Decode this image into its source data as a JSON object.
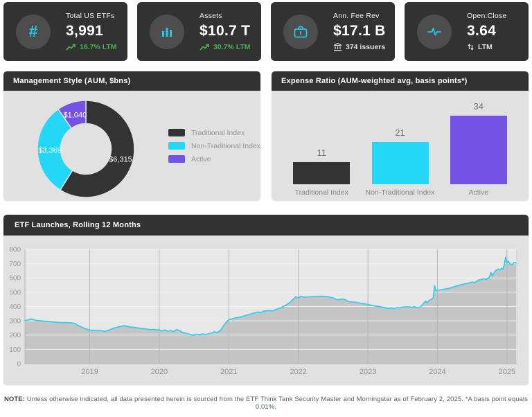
{
  "colors": {
    "card_bg": "#323232",
    "icon_circle_bg": "#4d4d4d",
    "accent_cyan": "#29c6e8",
    "green": "#4caf50",
    "panel_body_bg": "#e1e1e1",
    "series_dark": "#333333",
    "series_cyan": "#24d7f6",
    "series_purple": "#7452e4",
    "line_color": "#3bcbea",
    "area_fill": "#c3c3c3",
    "plot_bg": "#e8e8e8"
  },
  "kpi_cards": [
    {
      "icon": "hash-icon",
      "label": "Total US ETFs",
      "value": "3,991",
      "sub": "16.7% LTM",
      "sub_icon": "trending-up-icon"
    },
    {
      "icon": "bar-chart-icon",
      "label": "Assets",
      "value": "$10.7 T",
      "sub": "30.7% LTM",
      "sub_icon": "trending-up-icon"
    },
    {
      "icon": "briefcase-icon",
      "label": "Ann. Fee Rev",
      "value": "$17.1 B",
      "sub": "374 issuers",
      "sub_icon": "bank-icon"
    },
    {
      "icon": "activity-icon",
      "label": "Open:Close",
      "value": "3.64",
      "sub": "LTM",
      "sub_icon": "up-down-arrows-icon"
    }
  ],
  "chart_data": [
    {
      "type": "pie",
      "donut": true,
      "title": "Management Style (AUM, $bns)",
      "labels": [
        "Traditional Index",
        "Non-Traditional Index",
        "Active"
      ],
      "values": [
        6315,
        3369,
        1040
      ],
      "value_labels": [
        "$6,315",
        "$3,369",
        "$1,040"
      ],
      "colors": [
        "#333333",
        "#24d7f6",
        "#7452e4"
      ],
      "legend_position": "right",
      "start_angle_deg": 0,
      "direction": "clockwise"
    },
    {
      "type": "bar",
      "title": "Expense Ratio (AUM-weighted avg, basis points*)",
      "categories": [
        "Traditional Index",
        "Non-Traditional Index",
        "Active"
      ],
      "values": [
        11,
        21,
        34
      ],
      "colors": [
        "#333333",
        "#24d7f6",
        "#7452e4"
      ],
      "ylim": [
        0,
        36
      ],
      "grid": false,
      "value_labels_shown": true
    },
    {
      "type": "area",
      "title": "ETF Launches, Rolling 12 Months",
      "xlabel": "",
      "ylabel": "",
      "xlim": [
        2018.07,
        2025.14
      ],
      "ylim": [
        0,
        800
      ],
      "xticks": [
        2019,
        2020,
        2021,
        2022,
        2023,
        2024,
        2025
      ],
      "yticks": [
        0,
        100,
        200,
        300,
        400,
        500,
        600,
        700,
        800
      ],
      "grid": true,
      "legend_position": "none",
      "x": [
        2018.07,
        2018.12,
        2018.17,
        2018.21,
        2018.25,
        2018.33,
        2018.42,
        2018.5,
        2018.58,
        2018.67,
        2018.75,
        2018.79,
        2018.83,
        2018.92,
        2019.0,
        2019.08,
        2019.17,
        2019.21,
        2019.25,
        2019.33,
        2019.42,
        2019.5,
        2019.54,
        2019.58,
        2019.67,
        2019.75,
        2019.83,
        2019.88,
        2019.92,
        2020.0,
        2020.04,
        2020.08,
        2020.12,
        2020.17,
        2020.21,
        2020.25,
        2020.29,
        2020.33,
        2020.42,
        2020.46,
        2020.5,
        2020.54,
        2020.58,
        2020.63,
        2020.67,
        2020.71,
        2020.75,
        2020.79,
        2020.83,
        2020.88,
        2020.92,
        2020.96,
        2021.0,
        2021.08,
        2021.17,
        2021.25,
        2021.33,
        2021.42,
        2021.46,
        2021.5,
        2021.58,
        2021.63,
        2021.67,
        2021.75,
        2021.83,
        2021.88,
        2021.92,
        2021.96,
        2022.0,
        2022.04,
        2022.08,
        2022.17,
        2022.25,
        2022.33,
        2022.42,
        2022.46,
        2022.5,
        2022.54,
        2022.58,
        2022.63,
        2022.67,
        2022.71,
        2022.75,
        2022.83,
        2022.92,
        2023.0,
        2023.08,
        2023.17,
        2023.25,
        2023.29,
        2023.33,
        2023.38,
        2023.42,
        2023.46,
        2023.5,
        2023.58,
        2023.63,
        2023.67,
        2023.71,
        2023.75,
        2023.79,
        2023.83,
        2023.85,
        2023.88,
        2023.92,
        2023.94,
        2023.96,
        2023.98,
        2024.0,
        2024.08,
        2024.17,
        2024.25,
        2024.33,
        2024.42,
        2024.5,
        2024.54,
        2024.58,
        2024.67,
        2024.71,
        2024.75,
        2024.77,
        2024.79,
        2024.83,
        2024.88,
        2024.9,
        2024.92,
        2024.94,
        2024.96,
        2024.98,
        2025.0,
        2025.02,
        2025.04,
        2025.08,
        2025.1,
        2025.13
      ],
      "y": [
        303,
        306,
        313,
        305,
        302,
        298,
        294,
        291,
        288,
        287,
        285,
        280,
        268,
        248,
        235,
        232,
        231,
        226,
        230,
        246,
        258,
        266,
        262,
        257,
        251,
        246,
        242,
        238,
        240,
        236,
        229,
        235,
        226,
        231,
        224,
        239,
        232,
        220,
        208,
        202,
        200,
        206,
        203,
        208,
        204,
        210,
        213,
        224,
        217,
        232,
        262,
        288,
        308,
        318,
        327,
        338,
        350,
        361,
        357,
        368,
        372,
        369,
        378,
        391,
        412,
        428,
        448,
        468,
        460,
        472,
        465,
        468,
        471,
        472,
        470,
        464,
        461,
        450,
        447,
        453,
        449,
        437,
        433,
        429,
        421,
        414,
        406,
        399,
        392,
        386,
        390,
        385,
        393,
        389,
        396,
        398,
        394,
        398,
        391,
        394,
        416,
        438,
        424,
        442,
        452,
        460,
        545,
        508,
        512,
        520,
        528,
        540,
        552,
        561,
        571,
        567,
        583,
        594,
        590,
        607,
        638,
        616,
        648,
        663,
        655,
        668,
        660,
        690,
        745,
        702,
        718,
        698,
        694,
        710,
        705
      ]
    }
  ],
  "footer": {
    "note_label": "NOTE:",
    "note_text": " Unless otherwise indicated, all data presented herein is sourced from the ETF Think Tank Security Master and Morningstar as of February 2, 2025. *A basis point equals 0.01%."
  }
}
